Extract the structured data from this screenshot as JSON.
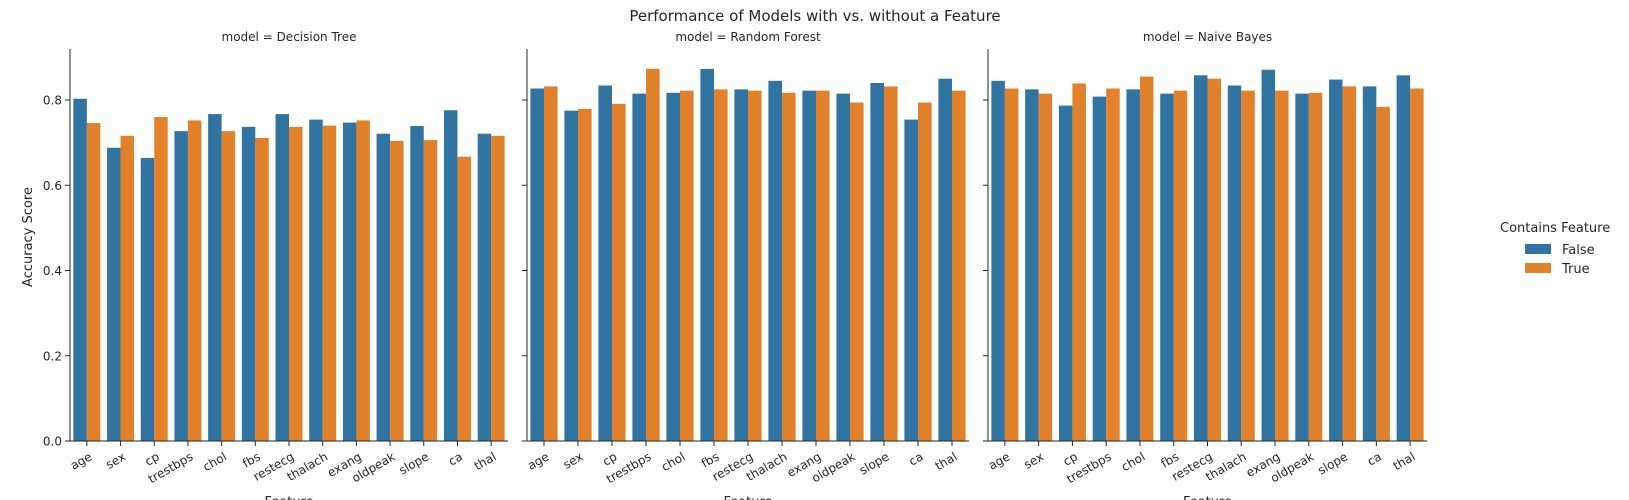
{
  "chart_data": {
    "type": "bar",
    "title": "Performance of Models with vs. without a Feature",
    "ylabel": "Accuracy Score",
    "xlabel": "Feature",
    "ylim": [
      0,
      0.915
    ],
    "yticks": [
      "0.0",
      "0.2",
      "0.4",
      "0.6",
      "0.8"
    ],
    "legend": {
      "title": "Contains Feature",
      "position": "right",
      "entries": [
        {
          "label": "False",
          "color": "#3274a1"
        },
        {
          "label": "True",
          "color": "#e1812c"
        }
      ]
    },
    "categories": [
      "age",
      "sex",
      "cp",
      "trestbps",
      "chol",
      "fbs",
      "restecg",
      "thalach",
      "exang",
      "oldpeak",
      "slope",
      "ca",
      "thal"
    ],
    "facets": [
      {
        "title": "model = Decision Tree",
        "series": [
          {
            "name": "False",
            "values": [
              0.803,
              0.688,
              0.664,
              0.727,
              0.767,
              0.737,
              0.767,
              0.754,
              0.747,
              0.721,
              0.739,
              0.776,
              0.721
            ]
          },
          {
            "name": "True",
            "values": [
              0.746,
              0.716,
              0.76,
              0.752,
              0.727,
              0.711,
              0.737,
              0.74,
              0.752,
              0.704,
              0.706,
              0.667,
              0.716
            ]
          }
        ]
      },
      {
        "title": "model = Random Forest",
        "series": [
          {
            "name": "False",
            "values": [
              0.827,
              0.775,
              0.834,
              0.815,
              0.817,
              0.873,
              0.825,
              0.845,
              0.822,
              0.815,
              0.84,
              0.754,
              0.85
            ]
          },
          {
            "name": "True",
            "values": [
              0.832,
              0.779,
              0.791,
              0.873,
              0.822,
              0.825,
              0.822,
              0.817,
              0.822,
              0.794,
              0.832,
              0.794,
              0.822
            ]
          }
        ]
      },
      {
        "title": "model = Naive Bayes",
        "series": [
          {
            "name": "False",
            "values": [
              0.845,
              0.825,
              0.787,
              0.808,
              0.825,
              0.815,
              0.858,
              0.834,
              0.871,
              0.815,
              0.848,
              0.832,
              0.858
            ]
          },
          {
            "name": "True",
            "values": [
              0.827,
              0.815,
              0.839,
              0.827,
              0.855,
              0.822,
              0.85,
              0.822,
              0.822,
              0.817,
              0.832,
              0.784,
              0.827
            ]
          }
        ]
      }
    ]
  }
}
